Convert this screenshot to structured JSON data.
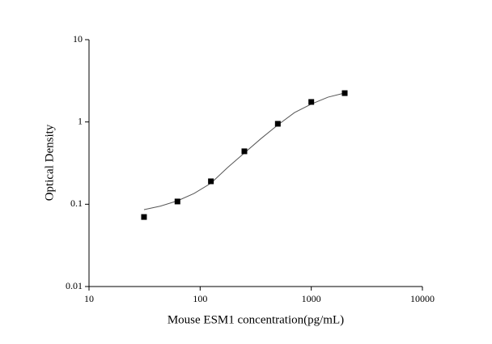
{
  "chart_data": {
    "type": "scatter",
    "xlabel": "Mouse ESM1 concentration(pg/mL)",
    "ylabel": "Optical Density",
    "xscale": "log",
    "yscale": "log",
    "xlim": [
      10,
      10000
    ],
    "ylim": [
      0.01,
      10
    ],
    "xticks": [
      10,
      100,
      1000,
      10000
    ],
    "yticks": [
      0.01,
      0.1,
      1,
      10
    ],
    "series": [
      {
        "type": "scatter",
        "marker": "square",
        "color": "#000000",
        "x": [
          31.25,
          62.5,
          125,
          250,
          500,
          1000,
          2000
        ],
        "values": [
          0.07,
          0.108,
          0.19,
          0.44,
          0.95,
          1.75,
          2.24
        ]
      },
      {
        "type": "line",
        "color": "#555555",
        "x": [
          31.25,
          44,
          62.5,
          88,
          125,
          177,
          250,
          354,
          500,
          707,
          1000,
          1414,
          2000
        ],
        "values": [
          0.086,
          0.095,
          0.11,
          0.135,
          0.18,
          0.28,
          0.42,
          0.63,
          0.92,
          1.3,
          1.65,
          2.0,
          2.25
        ]
      }
    ]
  }
}
